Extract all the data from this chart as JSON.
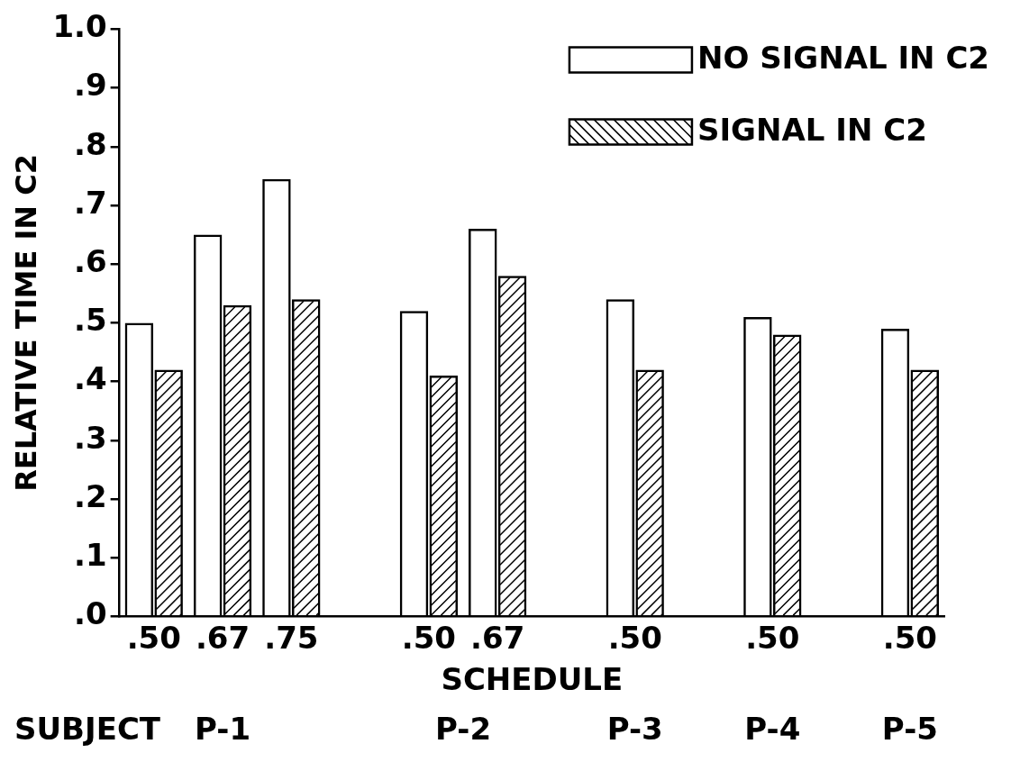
{
  "chart_data": {
    "type": "bar",
    "xlabel": "SCHEDULE",
    "ylabel": "RELATIVE TIME IN C2",
    "categories": [
      ".50",
      ".67",
      ".75",
      null,
      ".50",
      ".67",
      null,
      ".50",
      null,
      ".50",
      null,
      ".50"
    ],
    "series": [
      {
        "name": "NO SIGNAL IN C2",
        "color": "#000000",
        "values": [
          0.5,
          0.65,
          0.745,
          null,
          0.52,
          0.66,
          null,
          0.54,
          null,
          0.51,
          null,
          0.49
        ]
      },
      {
        "name": "SIGNAL IN C2",
        "color": "#000000",
        "values": [
          0.42,
          0.53,
          0.54,
          null,
          0.41,
          0.58,
          null,
          0.42,
          null,
          0.48,
          null,
          0.42
        ]
      }
    ],
    "ylim": [
      0,
      1
    ],
    "yticks": [
      {
        "value": 0,
        "label": ".0"
      },
      {
        "value": 0.1,
        "label": ".1"
      },
      {
        "value": 0.2,
        "label": ".2"
      },
      {
        "value": 0.3,
        "label": ".3"
      },
      {
        "value": 0.4,
        "label": ".4"
      },
      {
        "value": 0.5,
        "label": ".5"
      },
      {
        "value": 0.6,
        "label": ".6"
      },
      {
        "value": 0.7,
        "label": ".7"
      },
      {
        "value": 0.8,
        "label": ".8"
      },
      {
        "value": 0.9,
        "label": ".9"
      },
      {
        "value": 1,
        "label": "1.0"
      }
    ],
    "legend": "top right",
    "annotations": [
      "SUBJECT",
      "P-1",
      "P-2",
      "P-3",
      "P-4",
      "P-5"
    ]
  }
}
